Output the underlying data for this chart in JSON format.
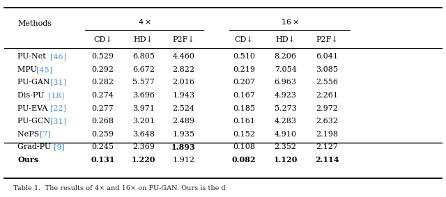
{
  "methods": [
    "PU-Net [46]",
    "MPU [45]",
    "PU-GAN [31]",
    "Dis-PU [18]",
    "PU-EVA [22]",
    "PU-GCN [31]",
    "NePS [7]",
    "Grad-PU [9]",
    "Ours"
  ],
  "method_refs": [
    "46",
    "45",
    "31",
    "18",
    "22",
    "31",
    "7",
    "9",
    ""
  ],
  "method_names_plain": [
    "PU-Net ",
    "MPU ",
    "PU-GAN ",
    "Dis-PU ",
    "PU-EVA ",
    "PU-GCN ",
    "NePS ",
    "Grad-PU ",
    "Ours"
  ],
  "x4": {
    "CD": [
      0.529,
      0.292,
      0.282,
      0.274,
      0.277,
      0.268,
      0.259,
      0.245,
      0.131
    ],
    "HD": [
      6.805,
      6.672,
      5.577,
      3.696,
      3.971,
      3.201,
      3.648,
      2.369,
      1.22
    ],
    "P2F": [
      4.46,
      2.822,
      2.016,
      1.943,
      2.524,
      2.489,
      1.935,
      1.893,
      1.912
    ]
  },
  "x16": {
    "CD": [
      0.51,
      0.219,
      0.207,
      0.167,
      0.185,
      0.161,
      0.152,
      0.108,
      0.082
    ],
    "HD": [
      8.206,
      7.054,
      6.963,
      4.923,
      5.273,
      4.283,
      4.91,
      2.352,
      1.12
    ],
    "P2F": [
      6.041,
      3.085,
      2.556,
      2.261,
      2.972,
      2.632,
      2.198,
      2.127,
      2.114
    ]
  },
  "bold_x4_CD": [
    8
  ],
  "bold_x4_HD": [
    8
  ],
  "bold_x4_P2F": [
    7
  ],
  "bold_x16_CD": [
    8
  ],
  "bold_x16_HD": [
    8
  ],
  "bold_x16_P2F": [
    8
  ],
  "ref_color": "#4a90d9",
  "background_color": "#ffffff",
  "font_size": 8.0,
  "header_font_size": 8.0
}
